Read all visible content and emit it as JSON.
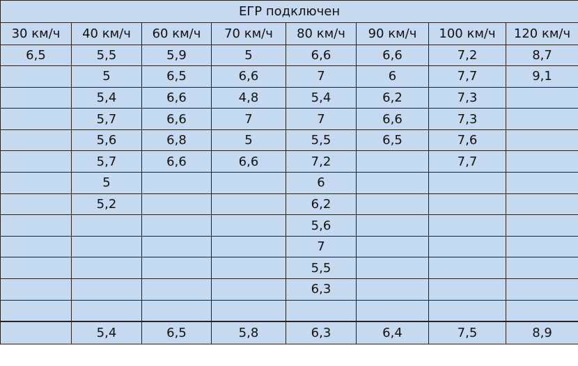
{
  "table": {
    "title": "ЕГР подключен",
    "columns": [
      "30 км/ч",
      "40 км/ч",
      "60 км/ч",
      "70 км/ч",
      "80 км/ч",
      "90 км/ч",
      "100 км/ч",
      "120 км/ч"
    ],
    "rows": [
      [
        "6,5",
        "5,5",
        "5,9",
        "5",
        "6,6",
        "6,6",
        "7,2",
        "8,7"
      ],
      [
        "",
        "5",
        "6,5",
        "6,6",
        "7",
        "6",
        "7,7",
        "9,1"
      ],
      [
        "",
        "5,4",
        "6,6",
        "4,8",
        "5,4",
        "6,2",
        "7,3",
        ""
      ],
      [
        "",
        "5,7",
        "6,6",
        "7",
        "7",
        "6,6",
        "7,3",
        ""
      ],
      [
        "",
        "5,6",
        "6,8",
        "5",
        "5,5",
        "6,5",
        "7,6",
        ""
      ],
      [
        "",
        "5,7",
        "6,6",
        "6,6",
        "7,2",
        "",
        "7,7",
        ""
      ],
      [
        "",
        "5",
        "",
        "",
        "6",
        "",
        "",
        ""
      ],
      [
        "",
        "5,2",
        "",
        "",
        "6,2",
        "",
        "",
        ""
      ],
      [
        "",
        "",
        "",
        "",
        "5,6",
        "",
        "",
        ""
      ],
      [
        "",
        "",
        "",
        "",
        "7",
        "",
        "",
        ""
      ],
      [
        "",
        "",
        "",
        "",
        "5,5",
        "",
        "",
        ""
      ],
      [
        "",
        "",
        "",
        "",
        "6,3",
        "",
        "",
        ""
      ],
      [
        "",
        "",
        "",
        "",
        "",
        "",
        "",
        ""
      ]
    ],
    "totals": [
      "",
      "5,4",
      "6,5",
      "5,8",
      "6,3",
      "6,4",
      "7,5",
      "8,9"
    ]
  },
  "colors": {
    "cell_background": "#c5d9f1",
    "border": "#222222",
    "text": "#111111"
  }
}
